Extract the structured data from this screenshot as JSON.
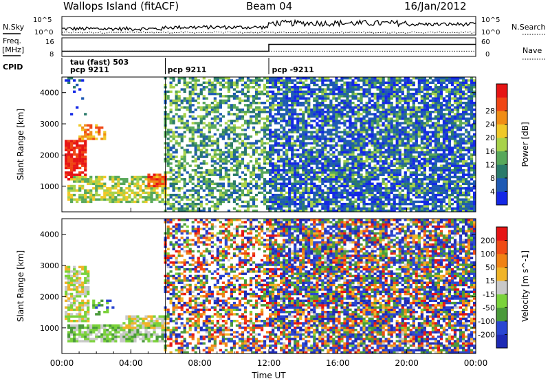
{
  "header": {
    "station": "Wallops Island (fitACF)",
    "beam": "Beam 04",
    "date": "16/Jan/2012"
  },
  "panel_labels": {
    "nsky": "N.Sky",
    "nsearch": "N.Search",
    "freq": "Freq.",
    "freq_unit": "[MHz]",
    "nave": "Nave",
    "cpid": "CPID"
  },
  "noise_ticks": {
    "left": [
      "10^5",
      "10^0"
    ],
    "right": [
      "10^5",
      "10^0"
    ]
  },
  "freq_ticks": {
    "left": [
      "16",
      "8"
    ],
    "right": [
      "60",
      "0"
    ]
  },
  "cpid_labels": [
    {
      "text": "tau (fast) 503",
      "hour": 0.4,
      "row": 0
    },
    {
      "text": "pcp 9211",
      "hour": 0.4,
      "row": 1
    },
    {
      "text": "pcp 9211",
      "hour": 6.05,
      "row": 1
    },
    {
      "text": "pcp -9211",
      "hour": 12.1,
      "row": 1
    }
  ],
  "range_axis": {
    "label": "Slant Range [km]",
    "ticks": [
      "1000",
      "2000",
      "3000",
      "4000"
    ]
  },
  "time_axis": {
    "label": "Time UT",
    "ticks": [
      "00:00",
      "04:00",
      "08:00",
      "12:00",
      "16:00",
      "20:00",
      "00:00"
    ]
  },
  "power_bar": {
    "label": "Power [dB]",
    "ticks": [
      "4",
      "8",
      "12",
      "16",
      "20",
      "24",
      "28"
    ],
    "colors": [
      "#1428e6",
      "#1e5ab4",
      "#2a7a6a",
      "#58a85a",
      "#a8d24a",
      "#f0c828",
      "#f08c14",
      "#f04614",
      "#e61414"
    ]
  },
  "velocity_bar": {
    "label": "Velocity [m s^-1]",
    "ticks": [
      "200",
      "100",
      "50",
      "15",
      "-15",
      "-50",
      "-100",
      "-200"
    ],
    "colors": [
      "#1e2ab4",
      "#2a46d2",
      "#4a9a3a",
      "#7ad23a",
      "#c8c8c8",
      "#f0b428",
      "#f08214",
      "#f04b14",
      "#e61414"
    ]
  },
  "chart_data": {
    "type": "heatmap",
    "title": "Wallops Island (fitACF)",
    "xlabel": "Time UT",
    "ylabel": "Slant Range [km]",
    "xlim_hours": [
      0,
      24
    ],
    "ylim_km": [
      180,
      4500
    ],
    "noise_log_range": [
      0,
      5
    ],
    "frequency": {
      "ylim_mhz": [
        8,
        18
      ],
      "segments": [
        {
          "start": 0,
          "end": 12,
          "value": 10.8
        },
        {
          "start": 12,
          "end": 24,
          "value": 14.5
        }
      ]
    },
    "nave": {
      "ylim": [
        0,
        60
      ],
      "value": 17
    },
    "cpid_changes_hours": [
      6,
      12
    ],
    "echo_regions_power": [
      {
        "t0": 0.1,
        "t1": 1.4,
        "r0": 1200,
        "r1": 2500,
        "level": 8,
        "density": 0.85
      },
      {
        "t0": 1.0,
        "t1": 2.6,
        "r0": 2500,
        "r1": 3000,
        "level": 6,
        "density": 0.5
      },
      {
        "t0": 0.4,
        "t1": 6.0,
        "r0": 500,
        "r1": 1300,
        "level": 4,
        "density": 0.7
      },
      {
        "t0": 5.0,
        "t1": 6.0,
        "r0": 1000,
        "r1": 1400,
        "level": 7,
        "density": 0.9
      },
      {
        "t0": 0.0,
        "t1": 1.5,
        "r0": 3200,
        "r1": 4500,
        "level": 1,
        "density": 0.1
      }
    ],
    "echo_regions_velocity": [
      {
        "t0": 0.1,
        "t1": 1.6,
        "r0": 1200,
        "r1": 3000,
        "level": 4,
        "density": 0.7
      },
      {
        "t0": 0.4,
        "t1": 6.0,
        "r0": 550,
        "r1": 1100,
        "level": 3,
        "density": 0.8
      },
      {
        "t0": 3.5,
        "t1": 6.0,
        "r0": 1000,
        "r1": 1400,
        "level": 4,
        "density": 0.8
      },
      {
        "t0": 1.8,
        "t1": 3.2,
        "r0": 1400,
        "r1": 1900,
        "level": 2,
        "density": 0.4
      }
    ]
  }
}
